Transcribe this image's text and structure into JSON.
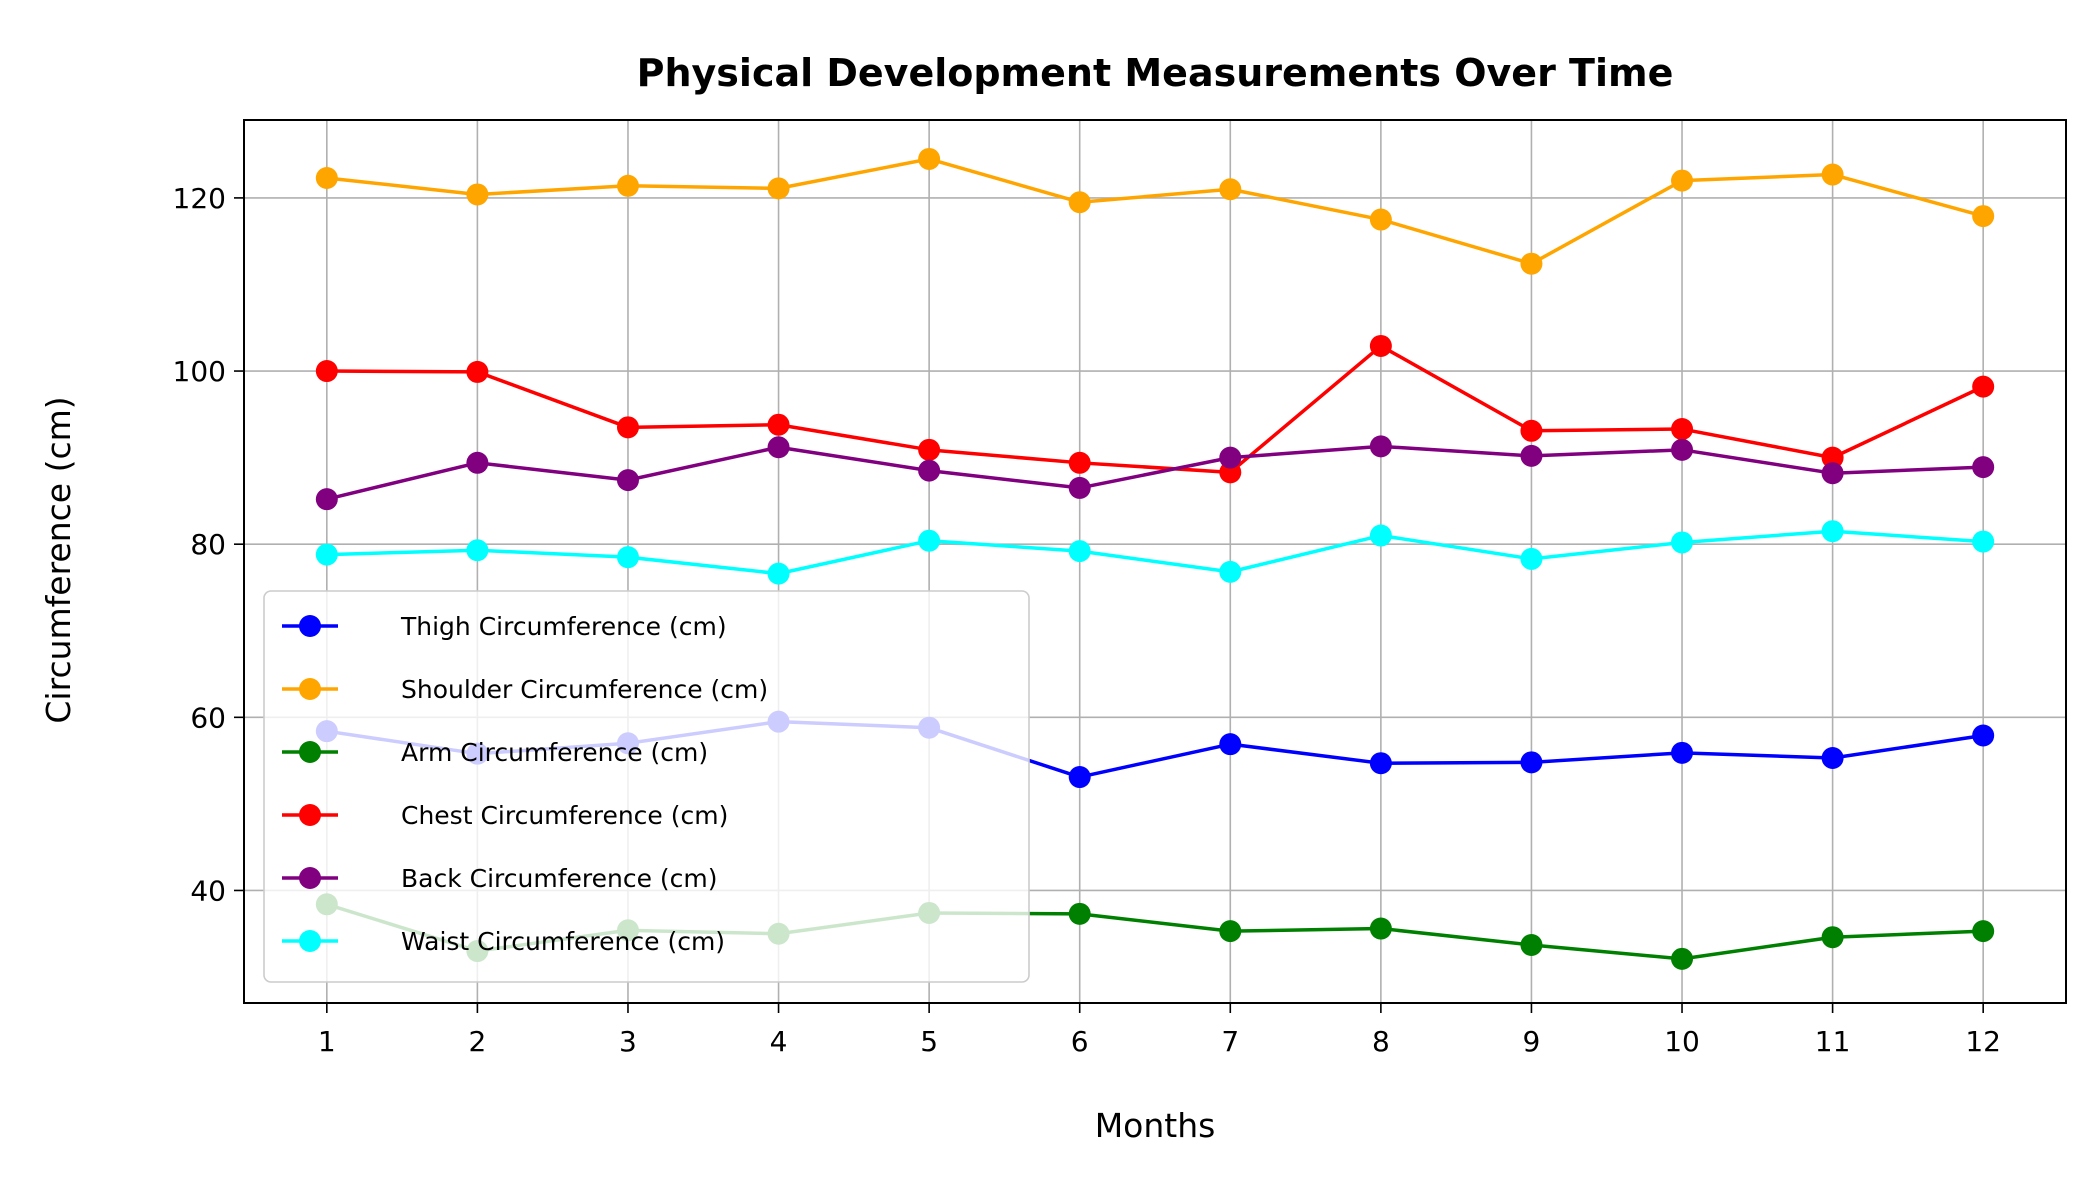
{
  "chart_data": {
    "type": "line",
    "title": "Physical Development Measurements Over Time",
    "xlabel": "Months",
    "ylabel": "Circumference (cm)",
    "x": [
      1,
      2,
      3,
      4,
      5,
      6,
      7,
      8,
      9,
      10,
      11,
      12
    ],
    "x_ticks": [
      "1",
      "2",
      "3",
      "4",
      "5",
      "6",
      "7",
      "8",
      "9",
      "10",
      "11",
      "12"
    ],
    "xlim": [
      0.45,
      12.55
    ],
    "ylim": [
      27,
      129
    ],
    "y_ticks": [
      40,
      60,
      80,
      100,
      120
    ],
    "grid": true,
    "legend_position": "lower-left",
    "series": [
      {
        "name": "Thigh Circumference (cm)",
        "color": "#0000ff",
        "values": [
          58.4,
          55.8,
          57.0,
          59.5,
          58.8,
          53.1,
          56.9,
          54.7,
          54.8,
          55.9,
          55.3,
          57.9
        ]
      },
      {
        "name": "Shoulder Circumference (cm)",
        "color": "#ffa500",
        "values": [
          122.3,
          120.4,
          121.4,
          121.1,
          124.5,
          119.5,
          121.0,
          117.5,
          112.4,
          122.0,
          122.7,
          117.9
        ]
      },
      {
        "name": "Arm Circumference (cm)",
        "color": "#008000",
        "values": [
          38.4,
          33.0,
          35.4,
          35.0,
          37.4,
          37.3,
          35.3,
          35.6,
          33.7,
          32.1,
          34.6,
          35.3
        ]
      },
      {
        "name": "Chest Circumference (cm)",
        "color": "#ff0000",
        "values": [
          100.0,
          99.9,
          93.5,
          93.8,
          90.9,
          89.4,
          88.3,
          102.9,
          93.1,
          93.3,
          90.0,
          98.2
        ]
      },
      {
        "name": "Back Circumference (cm)",
        "color": "#800080",
        "values": [
          85.2,
          89.4,
          87.4,
          91.2,
          88.5,
          86.5,
          90.0,
          91.3,
          90.2,
          90.9,
          88.2,
          88.9
        ]
      },
      {
        "name": "Waist Circumference (cm)",
        "color": "#00ffff",
        "values": [
          78.8,
          79.3,
          78.5,
          76.6,
          80.4,
          79.2,
          76.8,
          81.0,
          78.3,
          80.2,
          81.5,
          80.3
        ]
      }
    ]
  }
}
